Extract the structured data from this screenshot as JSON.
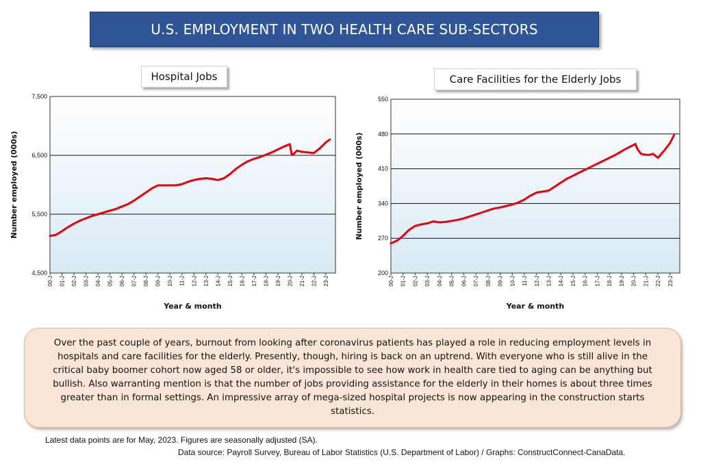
{
  "page": {
    "title": "U.S. EMPLOYMENT IN TWO HEALTH CARE SUB-SECTORS",
    "description": "Over the past couple of years, burnout from looking after coronavirus patients has played a role in reducing employment levels in hospitals and care facilities for the elderly. Presently, though, hiring is back on an uptrend. With everyone who is still alive in the critical baby boomer cohort now aged 58 or older, it's impossible to see how work in health care tied to aging can be anything but bullish. Also warranting mention is that the number of jobs providing assistance for the elderly in their homes is about three times greater than in formal settings. An impressive array of mega-sized hospital projects is now appearing in the construction starts statistics.",
    "footer_latest": "Latest data points are for May, 2023. Figures are seasonally adjusted (SA).",
    "footer_source": "Data source: Payroll Survey, Bureau of Labor Statistics (U.S. Department of Labor) / Graphs: ConstructConnect-CanaData."
  },
  "colors": {
    "banner": "#2f5597",
    "line": "#e8000b",
    "plot_top": "#ffffff",
    "plot_bottom": "#d9eaf5",
    "note_bg": "#fbe5d6"
  },
  "chart_data": [
    {
      "type": "line",
      "title": "Hospital Jobs",
      "xlabel": "Year & month",
      "ylabel": "Number employed (000s)",
      "ylim": [
        4500,
        7500
      ],
      "yticks": [
        4500,
        5500,
        6500,
        7500
      ],
      "ytick_labels": [
        "4,500",
        "5,500",
        "6,500",
        "7,500"
      ],
      "xtick_labels": [
        "00-J",
        "01-J",
        "02-J",
        "03-J",
        "04-J",
        "05-J",
        "06-J",
        "07-J",
        "08-J",
        "09-J",
        "10-J",
        "11-J",
        "12-J",
        "13-J",
        "14-J",
        "15-J",
        "16-J",
        "17-J",
        "18-J",
        "19-J",
        "20-J",
        "21-J",
        "22-J",
        "23-J"
      ],
      "gridlines": [
        5500,
        6500
      ],
      "series": [
        {
          "name": "Hospital Jobs",
          "x": [
            2000.0,
            2000.5,
            2001.0,
            2001.5,
            2002.0,
            2002.5,
            2003.0,
            2003.5,
            2004.0,
            2004.5,
            2005.0,
            2005.5,
            2006.0,
            2006.5,
            2007.0,
            2007.5,
            2008.0,
            2008.5,
            2009.0,
            2009.5,
            2010.0,
            2010.5,
            2011.0,
            2011.5,
            2012.0,
            2012.5,
            2013.0,
            2013.5,
            2014.0,
            2014.5,
            2015.0,
            2015.5,
            2016.0,
            2016.5,
            2017.0,
            2017.5,
            2018.0,
            2018.5,
            2019.0,
            2019.5,
            2020.0,
            2020.15,
            2020.3,
            2020.6,
            2021.0,
            2021.5,
            2022.0,
            2022.5,
            2023.0,
            2023.33
          ],
          "values": [
            5130,
            5150,
            5210,
            5280,
            5340,
            5390,
            5430,
            5470,
            5500,
            5530,
            5560,
            5590,
            5630,
            5670,
            5730,
            5800,
            5870,
            5940,
            5990,
            5990,
            5990,
            5990,
            6010,
            6050,
            6080,
            6100,
            6110,
            6100,
            6080,
            6110,
            6180,
            6270,
            6340,
            6400,
            6440,
            6470,
            6510,
            6550,
            6600,
            6650,
            6690,
            6520,
            6520,
            6580,
            6560,
            6550,
            6540,
            6620,
            6720,
            6770
          ]
        }
      ]
    },
    {
      "type": "line",
      "title": "Care Facilities for the Elderly Jobs",
      "xlabel": "Year & month",
      "ylabel": "Number employed (000s)",
      "ylim": [
        200,
        550
      ],
      "yticks": [
        200,
        270,
        340,
        410,
        480,
        550
      ],
      "ytick_labels": [
        "200",
        "270",
        "340",
        "410",
        "480",
        "550"
      ],
      "xtick_labels": [
        "00-J",
        "01-J",
        "02-J",
        "03-J",
        "04-J",
        "05-J",
        "06-J",
        "07-J",
        "08-J",
        "09-J",
        "10-J",
        "11-J",
        "12-J",
        "13-J",
        "14-J",
        "15-J",
        "16-J",
        "17-J",
        "18-J",
        "19-J",
        "20-J",
        "21-J",
        "22-J",
        "23-J"
      ],
      "gridlines": [
        270,
        340,
        410,
        480
      ],
      "series": [
        {
          "name": "Care Facilities for the Elderly Jobs",
          "x": [
            2000.0,
            2000.5,
            2001.0,
            2001.5,
            2002.0,
            2002.5,
            2003.0,
            2003.5,
            2004.0,
            2004.5,
            2005.0,
            2005.5,
            2006.0,
            2006.5,
            2007.0,
            2007.5,
            2008.0,
            2008.5,
            2009.0,
            2009.5,
            2010.0,
            2010.5,
            2011.0,
            2011.5,
            2012.0,
            2012.5,
            2013.0,
            2013.5,
            2014.0,
            2014.5,
            2015.0,
            2015.5,
            2016.0,
            2016.5,
            2017.0,
            2017.5,
            2018.0,
            2018.5,
            2019.0,
            2019.5,
            2020.0,
            2020.15,
            2020.3,
            2020.6,
            2021.0,
            2021.3,
            2021.6,
            2022.0,
            2022.5,
            2023.0,
            2023.33
          ],
          "values": [
            260,
            265,
            275,
            287,
            295,
            298,
            300,
            304,
            302,
            303,
            305,
            307,
            310,
            314,
            318,
            322,
            326,
            330,
            332,
            335,
            338,
            342,
            348,
            356,
            362,
            364,
            366,
            374,
            382,
            390,
            396,
            402,
            408,
            414,
            420,
            426,
            432,
            438,
            445,
            452,
            458,
            460,
            450,
            440,
            438,
            438,
            440,
            432,
            446,
            462,
            478
          ]
        }
      ]
    }
  ]
}
